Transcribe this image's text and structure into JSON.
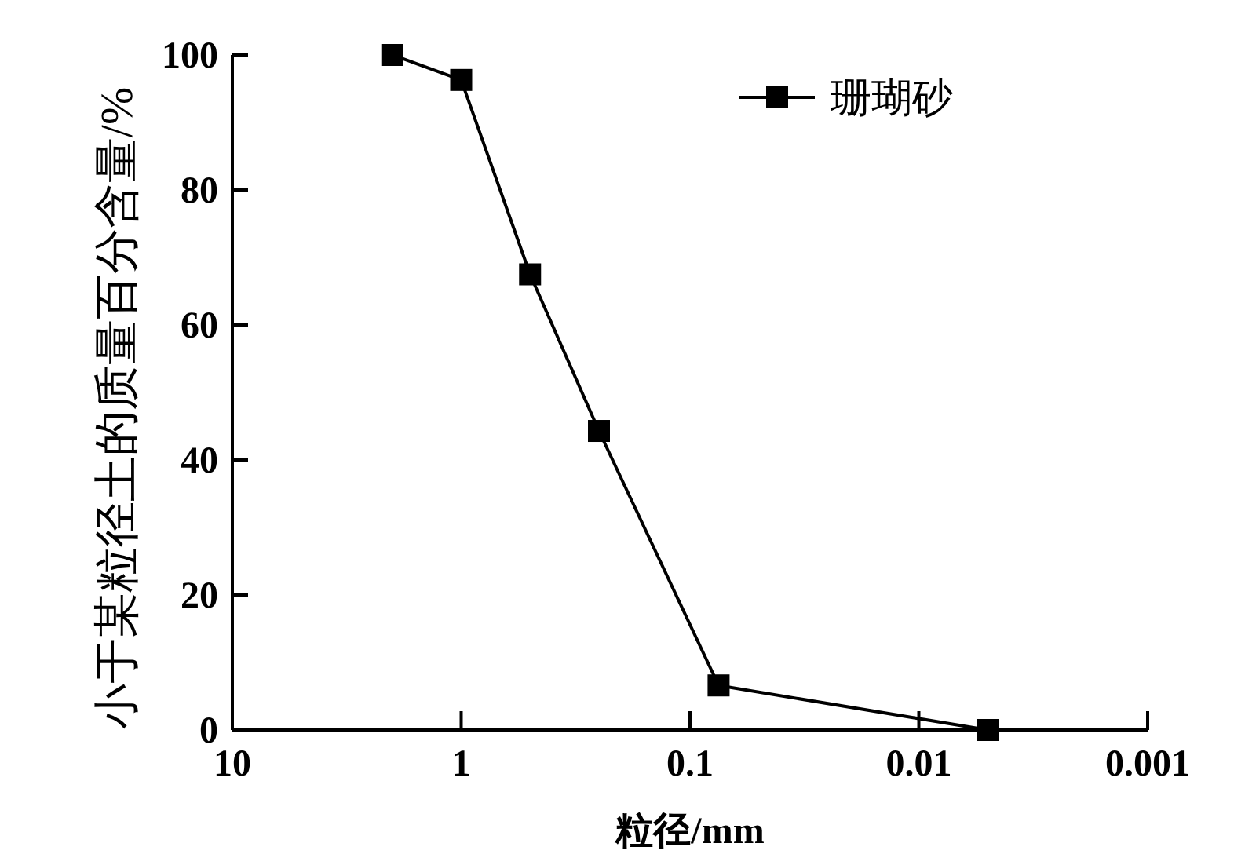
{
  "chart_data": {
    "type": "line",
    "xlabel": "粒径/mm",
    "ylabel": "小于某粒径土的质量百分含量/%",
    "x": [
      2,
      1,
      0.5,
      0.25,
      0.075,
      0.005
    ],
    "series": [
      {
        "name": "珊瑚砂",
        "color": "#000000",
        "values": [
          100,
          96.3,
          67.5,
          44.3,
          6.6,
          0
        ]
      }
    ],
    "xlim": [
      10,
      0.001
    ],
    "xticks": [
      10,
      1,
      0.1,
      0.01,
      0.001
    ],
    "ylim": [
      0,
      100
    ],
    "yticks": [
      0,
      20,
      40,
      60,
      80,
      100
    ],
    "log": "x",
    "legend": "top right",
    "marker": "square",
    "line_style": "solid",
    "grid": false
  }
}
